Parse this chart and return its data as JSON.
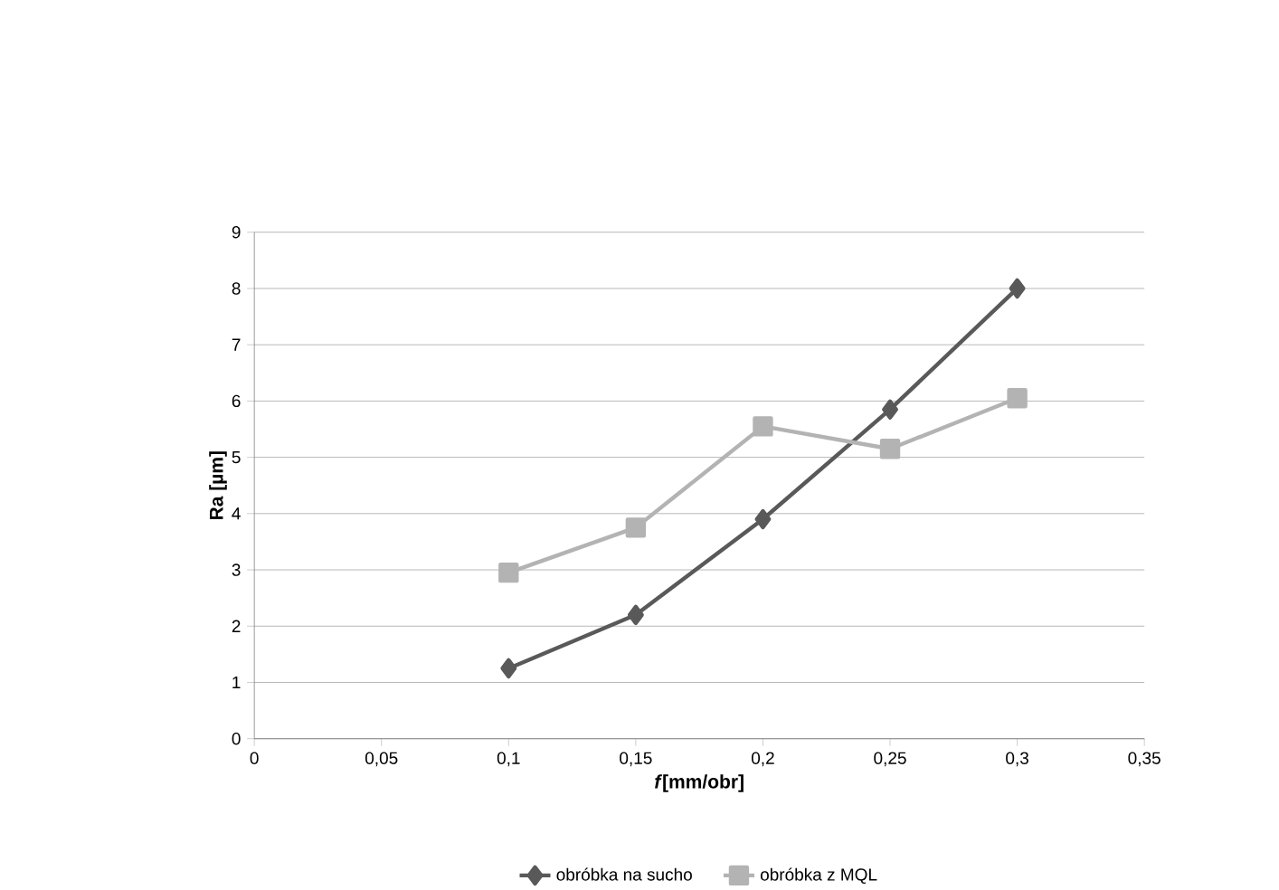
{
  "chart_data": {
    "type": "line",
    "xlabel": "*f*[mm/obr]",
    "ylabel": "**Ra [µm]**",
    "xlim": [
      0,
      0.35
    ],
    "ylim": [
      0,
      9
    ],
    "xticks": [
      {
        "value": 0,
        "label": "0"
      },
      {
        "value": 0.05,
        "label": "0,05"
      },
      {
        "value": 0.1,
        "label": "0,1"
      },
      {
        "value": 0.15,
        "label": "0,15"
      },
      {
        "value": 0.2,
        "label": "0,2"
      },
      {
        "value": 0.25,
        "label": "0,25"
      },
      {
        "value": 0.3,
        "label": "0,3"
      },
      {
        "value": 0.35,
        "label": "0,35"
      }
    ],
    "yticks": [
      0,
      1,
      2,
      3,
      4,
      5,
      6,
      7,
      8,
      9
    ],
    "grid": "y",
    "legend": "bottom",
    "line_style": "solid",
    "x": [
      0.1,
      0.15,
      0.2,
      0.25,
      0.3
    ],
    "series": [
      {
        "name": "obróbka na sucho",
        "color": "#595959",
        "marker": "diamond",
        "values": [
          1.25,
          2.2,
          3.9,
          5.85,
          8.0
        ]
      },
      {
        "name": "obróbka z MQL",
        "color": "#b3b3b3",
        "marker": "square",
        "values": [
          2.95,
          3.75,
          5.55,
          5.15,
          6.05
        ]
      }
    ]
  }
}
